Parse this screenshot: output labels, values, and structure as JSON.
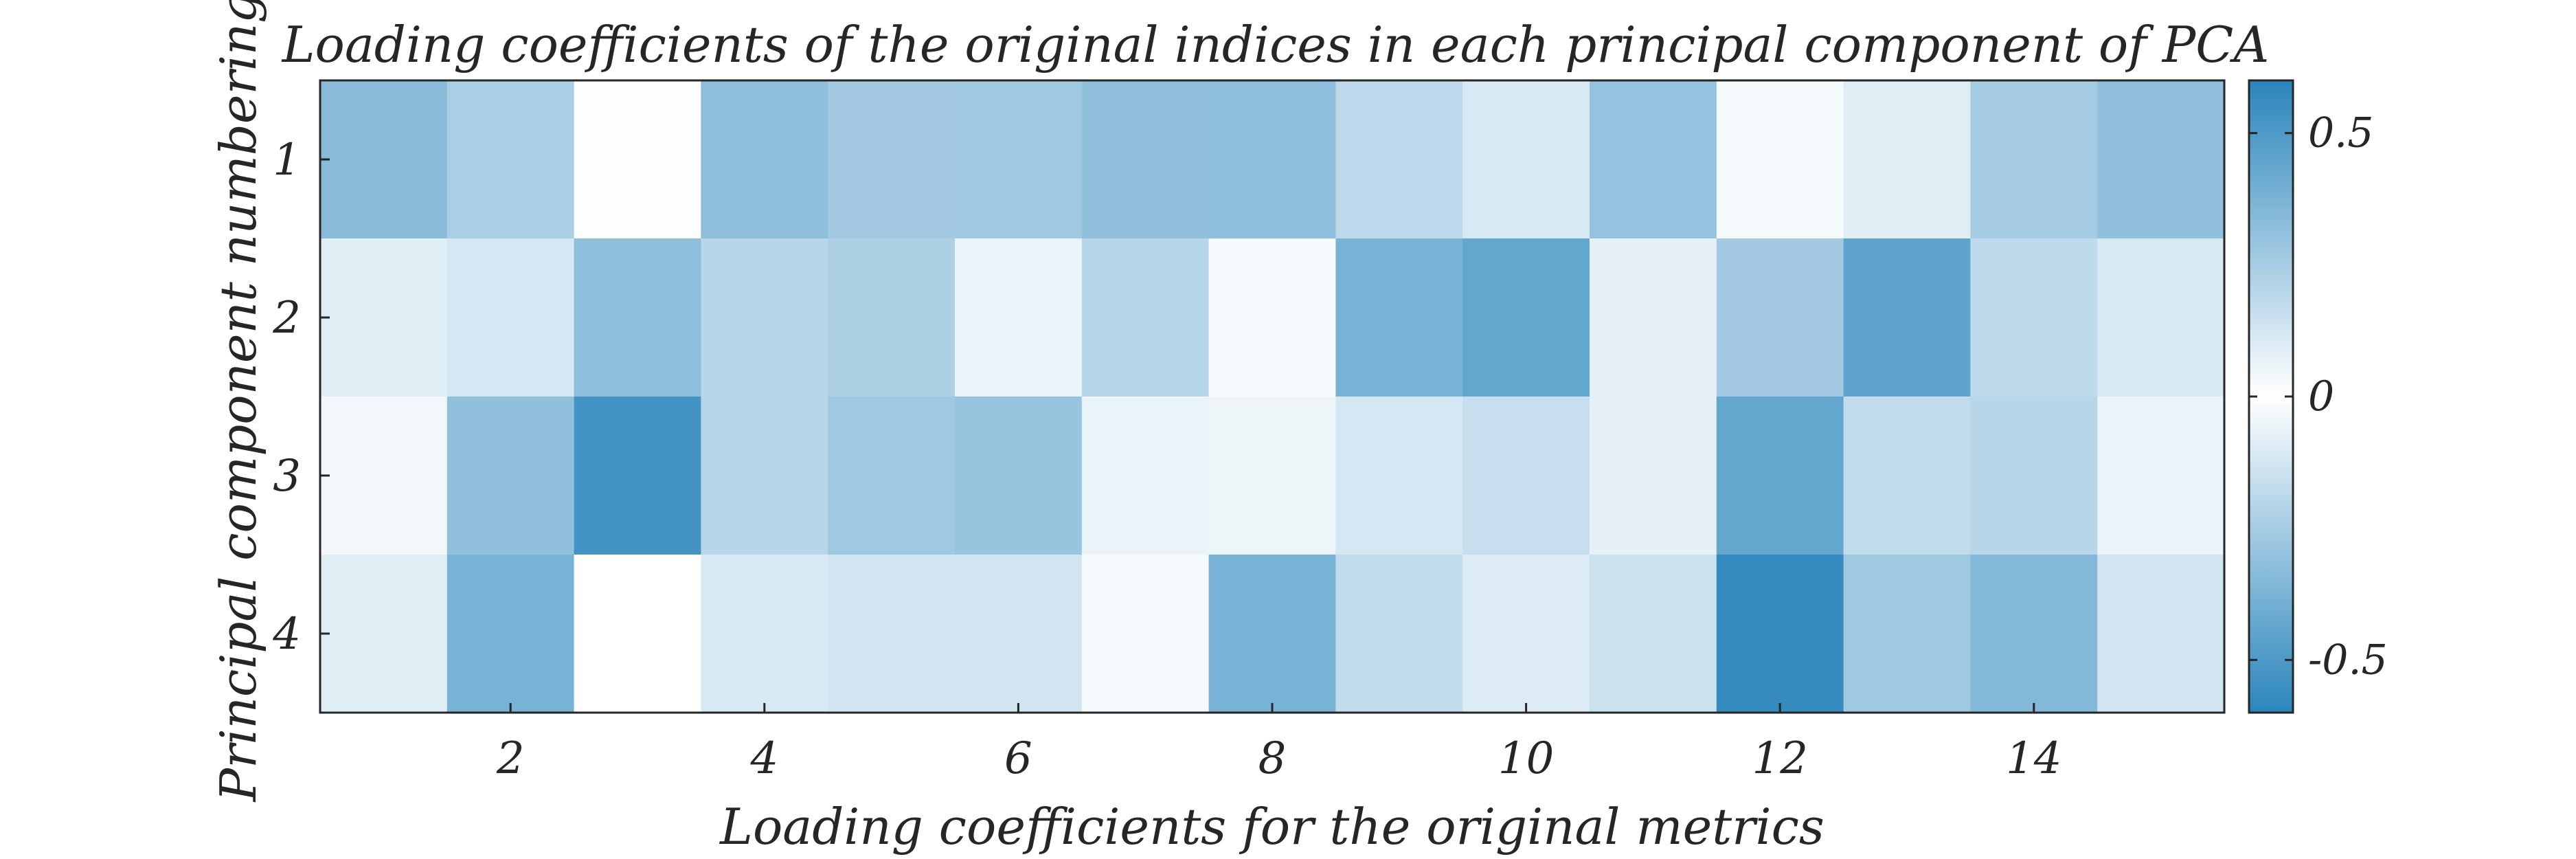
{
  "chart_data": {
    "type": "heatmap",
    "title": "Loading coefficients of the original indices in each principal component of PCA",
    "xlabel": "Loading coefficients for the original metrics",
    "ylabel": "Principal component numbering",
    "x_ticks": [
      "2",
      "4",
      "6",
      "8",
      "10",
      "12",
      "14"
    ],
    "x_tick_values": [
      2,
      4,
      6,
      8,
      10,
      12,
      14
    ],
    "y_ticks": [
      "1",
      "2",
      "3",
      "4"
    ],
    "y_tick_values": [
      1,
      2,
      3,
      4
    ],
    "colorbar_ticks": [
      "0.5",
      "0",
      "-0.5"
    ],
    "colorbar_tick_values": [
      0.5,
      0,
      -0.5
    ],
    "clim": [
      -0.6,
      0.6
    ],
    "colormap_note": "absolute-value blues",
    "color_low": "#ffffff",
    "color_high": "#2a85bc",
    "rows": [
      [
        0.33,
        0.24,
        0.01,
        0.32,
        0.26,
        0.27,
        0.31,
        0.32,
        0.19,
        0.11,
        0.3,
        0.03,
        0.09,
        0.25,
        0.31
      ],
      [
        0.09,
        0.12,
        0.32,
        0.2,
        0.23,
        0.06,
        0.2,
        0.02,
        0.38,
        0.44,
        0.07,
        0.26,
        0.45,
        0.18,
        0.11
      ],
      [
        0.04,
        0.31,
        0.53,
        0.2,
        0.27,
        0.29,
        0.06,
        0.05,
        0.12,
        0.16,
        0.07,
        0.44,
        0.17,
        0.2,
        0.06
      ],
      [
        0.09,
        0.38,
        0.0,
        0.11,
        0.13,
        0.13,
        0.03,
        0.38,
        0.17,
        0.1,
        0.15,
        0.57,
        0.27,
        0.35,
        0.13
      ]
    ]
  }
}
